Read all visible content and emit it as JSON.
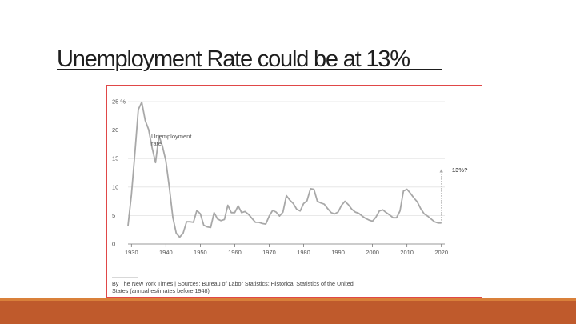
{
  "slide": {
    "title": "Unemployment Rate could be at 13%      "
  },
  "colors": {
    "title_text": "#1e1e1e",
    "frame_border": "#e04848",
    "line": "#a8a8a8",
    "projection": "#a8a8a8",
    "footer_band": "#bf5a2c",
    "footer_band_top": "#d9803a"
  },
  "chart_data": {
    "type": "line",
    "title": "",
    "xlabel": "",
    "ylabel": "",
    "series_label": "Unemployment\nrate",
    "annotation": "13%?",
    "projection": {
      "x": [
        2020,
        2020
      ],
      "y": [
        3.7,
        13
      ]
    },
    "x_ticks": [
      "1930",
      "1940",
      "1950",
      "1960",
      "1970",
      "1980",
      "1990",
      "2000",
      "2010",
      "2020"
    ],
    "y_ticks": [
      "0",
      "5",
      "10",
      "15",
      "20",
      "25 %"
    ],
    "xlim": [
      1929,
      2021
    ],
    "ylim": [
      0,
      25
    ],
    "grid": true,
    "source": "By The New York Times | Sources: Bureau  of Labor Statistics; Historical Statistics of the United States (annual estimates before 1948)",
    "series": [
      {
        "x": [
          1929,
          1930,
          1931,
          1932,
          1933,
          1934,
          1935,
          1936,
          1937,
          1938,
          1939,
          1940,
          1941,
          1942,
          1943,
          1944,
          1945,
          1946,
          1947,
          1948,
          1949,
          1950,
          1951,
          1952,
          1953,
          1954,
          1955,
          1956,
          1957,
          1958,
          1959,
          1960,
          1961,
          1962,
          1963,
          1964,
          1965,
          1966,
          1967,
          1968,
          1969,
          1970,
          1971,
          1972,
          1973,
          1974,
          1975,
          1976,
          1977,
          1978,
          1979,
          1980,
          1981,
          1982,
          1983,
          1984,
          1985,
          1986,
          1987,
          1988,
          1989,
          1990,
          1991,
          1992,
          1993,
          1994,
          1995,
          1996,
          1997,
          1998,
          1999,
          2000,
          2001,
          2002,
          2003,
          2004,
          2005,
          2006,
          2007,
          2008,
          2009,
          2010,
          2011,
          2012,
          2013,
          2014,
          2015,
          2016,
          2017,
          2018,
          2019,
          2020
        ],
        "y": [
          3.2,
          8.7,
          15.9,
          23.6,
          24.9,
          21.7,
          20.1,
          16.9,
          14.3,
          19.0,
          17.2,
          14.6,
          9.9,
          4.7,
          1.9,
          1.2,
          1.9,
          3.9,
          3.9,
          3.8,
          5.9,
          5.3,
          3.3,
          3.0,
          2.9,
          5.5,
          4.4,
          4.1,
          4.3,
          6.8,
          5.5,
          5.5,
          6.7,
          5.5,
          5.7,
          5.2,
          4.5,
          3.8,
          3.8,
          3.6,
          3.5,
          4.9,
          5.9,
          5.6,
          4.9,
          5.6,
          8.5,
          7.7,
          7.1,
          6.1,
          5.8,
          7.1,
          7.6,
          9.7,
          9.6,
          7.5,
          7.2,
          7.0,
          6.2,
          5.5,
          5.3,
          5.6,
          6.8,
          7.5,
          6.9,
          6.1,
          5.6,
          5.4,
          4.9,
          4.5,
          4.2,
          4.0,
          4.7,
          5.8,
          6.0,
          5.5,
          5.1,
          4.6,
          4.6,
          5.8,
          9.3,
          9.6,
          8.9,
          8.1,
          7.4,
          6.2,
          5.3,
          4.9,
          4.4,
          3.9,
          3.7,
          3.7
        ]
      }
    ]
  }
}
